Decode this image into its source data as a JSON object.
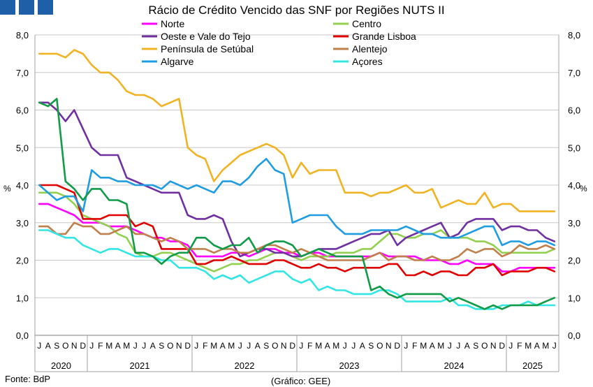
{
  "chart_data": {
    "type": "line",
    "title": "Rácio de Crédito Vencido das SNF por Regiões NUTS II",
    "ylabel_left": "%",
    "ylabel_right": "%",
    "ylim": [
      0,
      8
    ],
    "yticks": [
      "0,0",
      "1,0",
      "2,0",
      "3,0",
      "4,0",
      "5,0",
      "6,0",
      "7,0",
      "8,0"
    ],
    "x_month_labels": [
      "J",
      "A",
      "S",
      "O",
      "N",
      "D",
      "J",
      "F",
      "M",
      "A",
      "M",
      "J",
      "J",
      "A",
      "S",
      "O",
      "N",
      "D",
      "J",
      "F",
      "M",
      "A",
      "M",
      "J",
      "J",
      "A",
      "S",
      "O",
      "N",
      "D",
      "J",
      "F",
      "M",
      "A",
      "M",
      "J",
      "J",
      "A",
      "S",
      "O",
      "N",
      "D",
      "J",
      "F",
      "M",
      "A",
      "M",
      "J",
      "J",
      "A",
      "S",
      "O",
      "N",
      "D",
      "J",
      "F",
      "M",
      "A",
      "M",
      "J"
    ],
    "x": [
      "2020-07",
      "2020-08",
      "2020-09",
      "2020-10",
      "2020-11",
      "2020-12",
      "2021-01",
      "2021-02",
      "2021-03",
      "2021-04",
      "2021-05",
      "2021-06",
      "2021-07",
      "2021-08",
      "2021-09",
      "2021-10",
      "2021-11",
      "2021-12",
      "2022-01",
      "2022-02",
      "2022-03",
      "2022-04",
      "2022-05",
      "2022-06",
      "2022-07",
      "2022-08",
      "2022-09",
      "2022-10",
      "2022-11",
      "2022-12",
      "2023-01",
      "2023-02",
      "2023-03",
      "2023-04",
      "2023-05",
      "2023-06",
      "2023-07",
      "2023-08",
      "2023-09",
      "2023-10",
      "2023-11",
      "2023-12",
      "2024-01",
      "2024-02",
      "2024-03",
      "2024-04",
      "2024-05",
      "2024-06",
      "2024-07",
      "2024-08",
      "2024-09",
      "2024-10",
      "2024-11",
      "2024-12",
      "2025-01",
      "2025-02",
      "2025-03",
      "2025-04",
      "2025-05",
      "2025-06"
    ],
    "years": [
      {
        "label": "2020",
        "first": 0,
        "last": 5
      },
      {
        "label": "2021",
        "first": 6,
        "last": 17
      },
      {
        "label": "2022",
        "first": 18,
        "last": 29
      },
      {
        "label": "2023",
        "first": 30,
        "last": 41
      },
      {
        "label": "2024",
        "first": 42,
        "last": 53
      },
      {
        "label": "2025",
        "first": 54,
        "last": 59
      }
    ],
    "grid": "horizontal",
    "legend_position": "top",
    "series": [
      {
        "name": "Norte",
        "color": "#ff00ff",
        "values": [
          3.5,
          3.5,
          3.4,
          3.3,
          3.2,
          3.0,
          3.0,
          3.0,
          2.9,
          2.9,
          2.9,
          2.8,
          2.7,
          2.6,
          2.6,
          2.5,
          2.5,
          2.4,
          2.1,
          2.1,
          2.1,
          2.1,
          2.2,
          2.2,
          2.1,
          2.2,
          2.3,
          2.3,
          2.2,
          2.2,
          2.1,
          2.2,
          2.2,
          2.1,
          2.1,
          2.1,
          2.1,
          2.1,
          2.1,
          2.2,
          2.1,
          2.1,
          2.1,
          2.1,
          2.0,
          2.0,
          2.0,
          1.9,
          1.9,
          2.0,
          1.9,
          1.9,
          1.9,
          1.7,
          1.7,
          1.8,
          1.8,
          1.8,
          1.8,
          1.8
        ]
      },
      {
        "name": "Centro",
        "color": "#92d050",
        "values": [
          3.8,
          3.8,
          3.8,
          3.7,
          3.5,
          3.2,
          3.1,
          3.0,
          2.9,
          2.7,
          2.6,
          2.2,
          2.1,
          2.1,
          2.2,
          2.2,
          2.1,
          2.0,
          1.9,
          1.8,
          1.7,
          1.8,
          1.9,
          1.9,
          2.0,
          2.0,
          2.1,
          2.2,
          2.2,
          2.1,
          2.0,
          2.1,
          2.1,
          2.1,
          2.2,
          2.2,
          2.2,
          2.3,
          2.3,
          2.5,
          2.7,
          2.7,
          2.6,
          2.6,
          2.7,
          2.7,
          2.8,
          2.6,
          2.6,
          2.6,
          2.5,
          2.5,
          2.4,
          2.2,
          2.2,
          2.2,
          2.2,
          2.2,
          2.2,
          2.3
        ]
      },
      {
        "name": "Oeste e Vale do Tejo",
        "color": "#7030a0",
        "values": [
          6.2,
          6.2,
          6.0,
          5.7,
          6.0,
          5.5,
          5.0,
          4.8,
          4.8,
          4.8,
          4.2,
          4.1,
          4.0,
          3.9,
          3.8,
          3.8,
          3.8,
          3.2,
          3.1,
          3.1,
          3.2,
          3.1,
          2.5,
          2.1,
          2.2,
          2.3,
          2.3,
          2.2,
          2.2,
          2.1,
          2.1,
          2.2,
          2.3,
          2.3,
          2.3,
          2.4,
          2.5,
          2.6,
          2.7,
          2.7,
          2.8,
          2.4,
          2.6,
          2.7,
          2.8,
          2.9,
          3.0,
          2.6,
          2.7,
          3.0,
          3.1,
          3.1,
          3.1,
          2.8,
          2.9,
          2.9,
          2.8,
          2.8,
          2.6,
          2.5
        ]
      },
      {
        "name": "Grande Lisboa",
        "color": "#e00000",
        "values": [
          4.0,
          4.0,
          4.0,
          3.9,
          3.8,
          3.1,
          3.1,
          3.1,
          3.2,
          3.2,
          3.2,
          2.9,
          3.0,
          2.9,
          2.3,
          2.3,
          2.3,
          2.3,
          1.9,
          1.9,
          2.0,
          2.0,
          2.1,
          2.0,
          1.9,
          1.9,
          1.9,
          2.0,
          2.0,
          1.9,
          1.8,
          1.8,
          1.9,
          1.8,
          1.8,
          1.7,
          1.8,
          1.8,
          1.8,
          1.8,
          1.9,
          1.9,
          1.6,
          1.6,
          1.7,
          1.6,
          1.7,
          1.7,
          1.6,
          1.6,
          1.8,
          1.8,
          1.9,
          1.6,
          1.7,
          1.7,
          1.7,
          1.8,
          1.8,
          1.7
        ]
      },
      {
        "name": "Península de Setúbal",
        "color": "#f0b323",
        "values": [
          7.5,
          7.5,
          7.5,
          7.4,
          7.6,
          7.5,
          7.2,
          7.0,
          7.0,
          6.8,
          6.5,
          6.4,
          6.4,
          6.3,
          6.1,
          6.2,
          6.3,
          5.0,
          4.8,
          4.7,
          4.1,
          4.4,
          4.6,
          4.8,
          4.9,
          5.0,
          5.1,
          5.0,
          4.8,
          4.2,
          4.6,
          4.3,
          4.4,
          4.4,
          4.4,
          3.8,
          3.8,
          3.8,
          3.7,
          3.8,
          3.8,
          3.9,
          4.0,
          3.8,
          3.8,
          3.9,
          3.4,
          3.5,
          3.6,
          3.5,
          3.5,
          3.8,
          3.4,
          3.5,
          3.5,
          3.3,
          3.3,
          3.3,
          3.3,
          3.3
        ]
      },
      {
        "name": "Alentejo",
        "color": "#c0804b",
        "values": [
          2.9,
          2.9,
          2.7,
          2.7,
          3.0,
          2.9,
          2.9,
          2.7,
          2.7,
          2.8,
          2.9,
          2.7,
          2.7,
          2.6,
          2.5,
          2.6,
          2.5,
          2.3,
          2.3,
          2.3,
          2.2,
          2.3,
          2.3,
          2.2,
          2.2,
          2.3,
          2.4,
          2.4,
          2.3,
          2.2,
          2.3,
          2.2,
          2.1,
          2.0,
          2.0,
          2.0,
          2.0,
          2.0,
          2.1,
          2.2,
          2.0,
          2.1,
          2.1,
          2.0,
          2.0,
          2.1,
          2.0,
          2.0,
          2.1,
          2.3,
          2.2,
          2.3,
          2.3,
          2.1,
          2.2,
          2.4,
          2.3,
          2.3,
          2.4,
          2.3
        ]
      },
      {
        "name": "Algarve",
        "color": "#1f9de0",
        "values": [
          4.0,
          3.8,
          3.6,
          3.7,
          3.7,
          3.3,
          4.4,
          4.2,
          4.2,
          4.1,
          4.1,
          4.0,
          4.0,
          4.0,
          3.9,
          4.1,
          4.0,
          3.9,
          4.0,
          3.9,
          3.8,
          4.1,
          4.1,
          4.0,
          4.2,
          4.5,
          4.7,
          4.4,
          4.3,
          3.0,
          3.1,
          3.2,
          3.2,
          3.2,
          2.9,
          2.7,
          2.7,
          2.7,
          2.8,
          2.8,
          2.8,
          2.8,
          2.9,
          2.8,
          2.7,
          2.7,
          2.6,
          2.6,
          2.6,
          2.7,
          2.8,
          2.9,
          2.9,
          2.4,
          2.5,
          2.5,
          2.4,
          2.5,
          2.5,
          2.4
        ]
      },
      {
        "name": "Açores",
        "color": "#33e5e5",
        "values": [
          2.8,
          2.8,
          2.7,
          2.6,
          2.6,
          2.4,
          2.3,
          2.2,
          2.3,
          2.3,
          2.2,
          2.1,
          2.1,
          2.1,
          2.0,
          2.0,
          1.8,
          1.8,
          1.8,
          1.7,
          1.5,
          1.6,
          1.5,
          1.6,
          1.4,
          1.5,
          1.6,
          1.7,
          1.7,
          1.5,
          1.4,
          1.5,
          1.2,
          1.3,
          1.2,
          1.2,
          1.1,
          1.1,
          1.1,
          1.2,
          1.2,
          1.1,
          0.9,
          0.9,
          0.9,
          0.9,
          0.9,
          1.0,
          0.8,
          0.8,
          0.7,
          0.7,
          0.7,
          0.8,
          0.8,
          0.8,
          0.9,
          0.8,
          0.8,
          0.8
        ]
      },
      {
        "name": "",
        "color": "#119b47",
        "values": [
          6.2,
          6.1,
          6.3,
          4.1,
          3.9,
          3.6,
          3.9,
          3.9,
          3.6,
          3.6,
          3.5,
          2.2,
          2.2,
          2.1,
          1.9,
          2.1,
          2.2,
          2.2,
          2.6,
          2.6,
          2.4,
          2.3,
          2.4,
          2.4,
          2.6,
          2.2,
          2.4,
          2.5,
          2.5,
          2.4,
          2.1,
          2.2,
          2.3,
          2.2,
          2.1,
          2.1,
          2.1,
          2.1,
          1.2,
          1.3,
          1.1,
          1.0,
          1.1,
          1.1,
          1.1,
          1.1,
          1.1,
          0.9,
          1.0,
          0.9,
          0.8,
          0.7,
          0.8,
          0.7,
          0.8,
          0.8,
          0.8,
          0.8,
          0.9,
          1.0
        ]
      }
    ]
  },
  "footer": {
    "source": "Fonte: BdP",
    "credit": "(Gráfico: GEE)"
  }
}
